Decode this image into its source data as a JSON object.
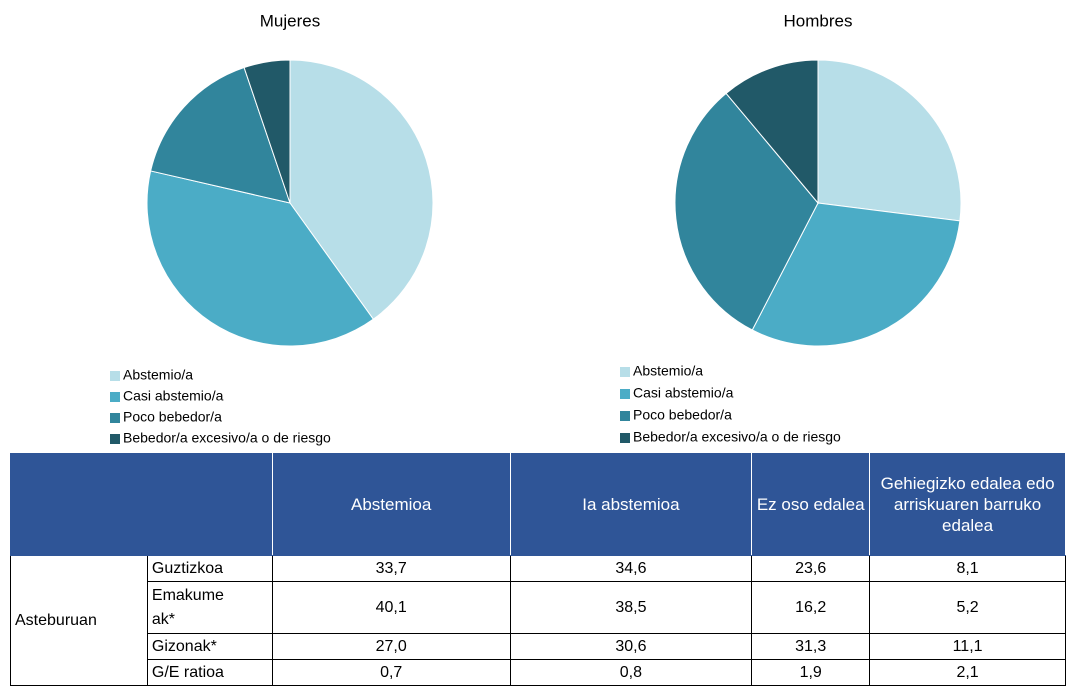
{
  "chart_data": [
    {
      "type": "pie",
      "title": "Mujeres",
      "categories": [
        "Abstemio/a",
        "Casi abstemio/a",
        "Poco bebedor/a",
        "Bebedor/a excesivo/a o de riesgo"
      ],
      "values": [
        40.1,
        38.5,
        16.2,
        5.2
      ],
      "colors": [
        "#b7dee8",
        "#4bacc6",
        "#31859c",
        "#215968"
      ]
    },
    {
      "type": "pie",
      "title": "Hombres",
      "categories": [
        "Abstemio/a",
        "Casi abstemio/a",
        "Poco bebedor/a",
        "Bebedor/a excesivo/a o de riesgo"
      ],
      "values": [
        27.0,
        30.6,
        31.3,
        11.1
      ],
      "colors": [
        "#b7dee8",
        "#4bacc6",
        "#31859c",
        "#215968"
      ]
    }
  ],
  "table": {
    "header": [
      "Abstemioa",
      "Ia abstemioa",
      "Ez oso edalea",
      "Gehiegizko edalea edo arriskuaren barruko edalea"
    ],
    "group": "Asteburuan",
    "rows": [
      [
        "Guztizkoa",
        "33,7",
        "34,6",
        "23,6",
        "8,1"
      ],
      [
        "Emakumeak*",
        "40,1",
        "38,5",
        "16,2",
        "5,2"
      ],
      [
        "Gizonak*",
        "27,0",
        "30,6",
        "31,3",
        "11,1"
      ],
      [
        "G/E ratioa",
        "0,7",
        "0,8",
        "1,9",
        "2,1"
      ]
    ]
  }
}
